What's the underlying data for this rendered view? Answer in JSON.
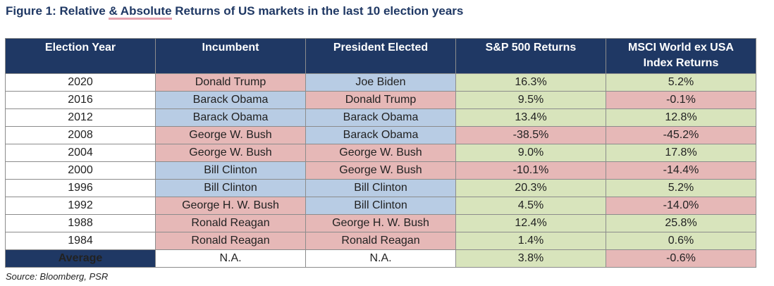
{
  "title": {
    "prefix": "Figure 1: Relative ",
    "highlight": "& Absolute",
    "suffix": " Returns of US markets in the last 10 election years"
  },
  "colors": {
    "header_navy": "#1f3864",
    "republican_red": "#e6b8b7",
    "democrat_blue": "#b8cce4",
    "positive_green": "#d8e4bc",
    "negative_red": "#e6b8b7"
  },
  "table": {
    "headers": {
      "year": "Election Year",
      "incumbent": "Incumbent",
      "president": "President Elected",
      "sp500_line1": "S&P 500 Returns",
      "msci_line1": "MSCI World ex USA",
      "msci_line2": "Index Returns"
    },
    "rows": [
      {
        "year": "2020",
        "incumbent": "Donald Trump",
        "inc_party": "red",
        "president": "Joe Biden",
        "pres_party": "blue",
        "sp500": "16.3%",
        "sp_tone": "green",
        "msci": "5.2%",
        "msci_tone": "green"
      },
      {
        "year": "2016",
        "incumbent": "Barack Obama",
        "inc_party": "blue",
        "president": "Donald Trump",
        "pres_party": "red",
        "sp500": "9.5%",
        "sp_tone": "green",
        "msci": "-0.1%",
        "msci_tone": "red"
      },
      {
        "year": "2012",
        "incumbent": "Barack Obama",
        "inc_party": "blue",
        "president": "Barack Obama",
        "pres_party": "blue",
        "sp500": "13.4%",
        "sp_tone": "green",
        "msci": "12.8%",
        "msci_tone": "green"
      },
      {
        "year": "2008",
        "incumbent": "George W. Bush",
        "inc_party": "red",
        "president": "Barack Obama",
        "pres_party": "blue",
        "sp500": "-38.5%",
        "sp_tone": "red",
        "msci": "-45.2%",
        "msci_tone": "red"
      },
      {
        "year": "2004",
        "incumbent": "George W. Bush",
        "inc_party": "red",
        "president": "George W. Bush",
        "pres_party": "red",
        "sp500": "9.0%",
        "sp_tone": "green",
        "msci": "17.8%",
        "msci_tone": "green"
      },
      {
        "year": "2000",
        "incumbent": "Bill Clinton",
        "inc_party": "blue",
        "president": "George W. Bush",
        "pres_party": "red",
        "sp500": "-10.1%",
        "sp_tone": "red",
        "msci": "-14.4%",
        "msci_tone": "red"
      },
      {
        "year": "1996",
        "incumbent": "Bill Clinton",
        "inc_party": "blue",
        "president": "Bill Clinton",
        "pres_party": "blue",
        "sp500": "20.3%",
        "sp_tone": "green",
        "msci": "5.2%",
        "msci_tone": "green"
      },
      {
        "year": "1992",
        "incumbent": "George H. W. Bush",
        "inc_party": "red",
        "president": "Bill Clinton",
        "pres_party": "blue",
        "sp500": "4.5%",
        "sp_tone": "green",
        "msci": "-14.0%",
        "msci_tone": "red"
      },
      {
        "year": "1988",
        "incumbent": "Ronald Reagan",
        "inc_party": "red",
        "president": "George H. W. Bush",
        "pres_party": "red",
        "sp500": "12.4%",
        "sp_tone": "green",
        "msci": "25.8%",
        "msci_tone": "green"
      },
      {
        "year": "1984",
        "incumbent": "Ronald Reagan",
        "inc_party": "red",
        "president": "Ronald Reagan",
        "pres_party": "red",
        "sp500": "1.4%",
        "sp_tone": "green",
        "msci": "0.6%",
        "msci_tone": "green"
      }
    ],
    "average": {
      "label": "Average",
      "incumbent": "N.A.",
      "president": "N.A.",
      "sp500": "3.8%",
      "sp_tone": "green",
      "msci": "-0.6%",
      "msci_tone": "red"
    }
  },
  "source": "Source: Bloomberg, PSR"
}
